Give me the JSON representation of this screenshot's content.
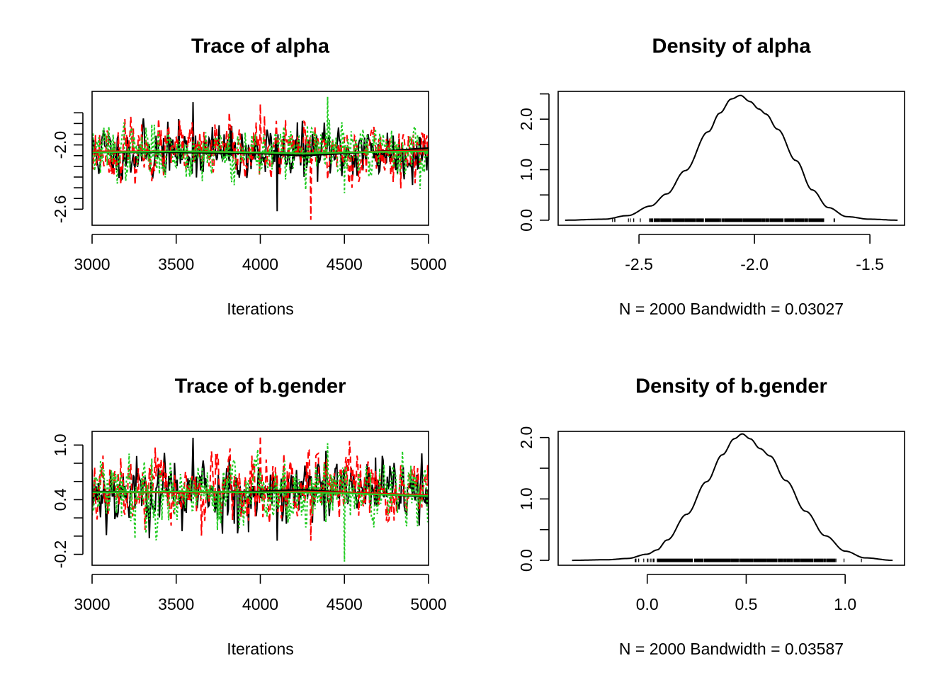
{
  "chart_data": [
    {
      "type": "line",
      "title": "Trace of alpha",
      "xlabel": "Iterations",
      "ylabel": "",
      "xlim": [
        3000,
        5000
      ],
      "ylim": [
        -2.75,
        -1.5
      ],
      "x_ticks": [
        3000,
        3500,
        4000,
        4500,
        5000
      ],
      "x_tick_labels": [
        "3000",
        "3500",
        "4000",
        "4500",
        "5000"
      ],
      "y_ticks": [
        -2.6,
        -2.5,
        -2.4,
        -2.3,
        -2.2,
        -2.1,
        -2.0,
        -1.9,
        -1.8,
        -1.7
      ],
      "y_tick_labels": [
        "-2.6",
        "",
        "",
        "",
        "",
        "",
        "-2.0",
        "",
        "",
        ""
      ],
      "grid": false,
      "series": [
        {
          "color": "#000000",
          "style": "solid",
          "mean": -2.07,
          "sd": 0.13,
          "seed": 11,
          "spike_min": -2.62,
          "spike_max": -1.6
        },
        {
          "color": "#ff0000",
          "style": "dashed",
          "mean": -2.06,
          "sd": 0.13,
          "seed": 23,
          "spike_min": -2.7,
          "spike_max": -1.62
        },
        {
          "color": "#22cc22",
          "style": "dotted",
          "mean": -2.06,
          "sd": 0.13,
          "seed": 37,
          "spike_min": -2.45,
          "spike_max": -1.55
        }
      ],
      "smooth_lines": [
        {
          "color": "#000000",
          "x": [
            3000,
            3500,
            4000,
            4250,
            4500,
            5000
          ],
          "y": [
            -2.07,
            -2.07,
            -2.08,
            -2.1,
            -2.08,
            -2.03
          ]
        },
        {
          "color": "#ff0000",
          "x": [
            3000,
            3500,
            4000,
            4250,
            4500,
            5000
          ],
          "y": [
            -2.06,
            -2.06,
            -2.07,
            -2.08,
            -2.07,
            -2.05
          ]
        },
        {
          "color": "#22cc22",
          "x": [
            3000,
            3500,
            4000,
            4250,
            4500,
            5000
          ],
          "y": [
            -2.07,
            -2.06,
            -2.07,
            -2.08,
            -2.07,
            -2.06
          ]
        }
      ]
    },
    {
      "type": "line",
      "title": "Density of alpha",
      "xlabel": "N = 2000   Bandwidth = 0.03027",
      "ylabel": "",
      "xlim": [
        -2.85,
        -1.35
      ],
      "ylim": [
        -0.1,
        2.55
      ],
      "x_ticks": [
        -2.5,
        -2.0,
        -1.5
      ],
      "x_tick_labels": [
        "-2.5",
        "-2.0",
        "-1.5"
      ],
      "y_ticks": [
        0.0,
        0.5,
        1.0,
        1.5,
        2.0,
        2.5
      ],
      "y_tick_labels": [
        "0.0",
        "",
        "1.0",
        "",
        "2.0",
        ""
      ],
      "grid": false,
      "series": [
        {
          "color": "#000000",
          "style": "solid",
          "x": [
            -2.82,
            -2.65,
            -2.55,
            -2.45,
            -2.38,
            -2.3,
            -2.2,
            -2.15,
            -2.1,
            -2.06,
            -2.02,
            -1.98,
            -1.95,
            -1.9,
            -1.82,
            -1.75,
            -1.68,
            -1.6,
            -1.5,
            -1.38
          ],
          "y": [
            0.0,
            0.02,
            0.09,
            0.28,
            0.52,
            0.98,
            1.75,
            2.12,
            2.4,
            2.47,
            2.35,
            2.2,
            2.1,
            1.8,
            1.18,
            0.6,
            0.25,
            0.07,
            0.02,
            0.0
          ]
        }
      ],
      "rug": {
        "min": -2.62,
        "max": -1.62,
        "dense_min": -2.45,
        "dense_max": -1.7,
        "value": 0.0
      }
    },
    {
      "type": "line",
      "title": "Trace of b.gender",
      "xlabel": "Iterations",
      "ylabel": "",
      "xlim": [
        3000,
        5000
      ],
      "ylim": [
        -0.32,
        1.15
      ],
      "x_ticks": [
        3000,
        3500,
        4000,
        4500,
        5000
      ],
      "x_tick_labels": [
        "3000",
        "3500",
        "4000",
        "4500",
        "5000"
      ],
      "y_ticks": [
        -0.2,
        0.0,
        0.2,
        0.4,
        0.6,
        0.8,
        1.0
      ],
      "y_tick_labels": [
        "-0.2",
        "",
        "",
        "0.4",
        "",
        "",
        "1.0"
      ],
      "grid": false,
      "series": [
        {
          "color": "#000000",
          "style": "solid",
          "mean": 0.49,
          "sd": 0.19,
          "seed": 53,
          "spike_min": -0.05,
          "spike_max": 1.08
        },
        {
          "color": "#ff0000",
          "style": "dashed",
          "mean": 0.49,
          "sd": 0.19,
          "seed": 67,
          "spike_min": -0.05,
          "spike_max": 1.1
        },
        {
          "color": "#22cc22",
          "style": "dotted",
          "mean": 0.49,
          "sd": 0.19,
          "seed": 79,
          "spike_min": -0.28,
          "spike_max": 1.02
        }
      ],
      "smooth_lines": [
        {
          "color": "#000000",
          "x": [
            3000,
            3500,
            4000,
            4250,
            4500,
            5000
          ],
          "y": [
            0.49,
            0.48,
            0.49,
            0.51,
            0.48,
            0.43
          ]
        },
        {
          "color": "#ff0000",
          "x": [
            3000,
            3500,
            4000,
            4250,
            4500,
            5000
          ],
          "y": [
            0.48,
            0.48,
            0.48,
            0.49,
            0.48,
            0.45
          ]
        },
        {
          "color": "#22cc22",
          "x": [
            3000,
            3500,
            4000,
            4250,
            4500,
            5000
          ],
          "y": [
            0.48,
            0.49,
            0.48,
            0.48,
            0.47,
            0.44
          ]
        }
      ]
    },
    {
      "type": "line",
      "title": "Density of b.gender",
      "xlabel": "N = 2000   Bandwidth = 0.03587",
      "ylabel": "",
      "xlim": [
        -0.45,
        1.3
      ],
      "ylim": [
        -0.08,
        2.1
      ],
      "x_ticks": [
        0.0,
        0.5,
        1.0
      ],
      "x_tick_labels": [
        "0.0",
        "0.5",
        "1.0"
      ],
      "y_ticks": [
        0.0,
        0.5,
        1.0,
        1.5,
        2.0
      ],
      "y_tick_labels": [
        "0.0",
        "",
        "1.0",
        "",
        "2.0"
      ],
      "grid": false,
      "series": [
        {
          "color": "#000000",
          "style": "solid",
          "x": [
            -0.38,
            -0.2,
            -0.1,
            0.0,
            0.05,
            0.1,
            0.2,
            0.3,
            0.38,
            0.44,
            0.48,
            0.52,
            0.57,
            0.62,
            0.7,
            0.8,
            0.9,
            1.0,
            1.1,
            1.24
          ],
          "y": [
            0.0,
            0.01,
            0.03,
            0.1,
            0.17,
            0.33,
            0.75,
            1.28,
            1.72,
            1.98,
            2.06,
            1.98,
            1.82,
            1.7,
            1.3,
            0.8,
            0.4,
            0.15,
            0.04,
            0.0
          ]
        }
      ],
      "rug": {
        "min": -0.07,
        "max": 1.1,
        "dense_min": 0.05,
        "dense_max": 0.95,
        "value": 0.0
      }
    }
  ]
}
